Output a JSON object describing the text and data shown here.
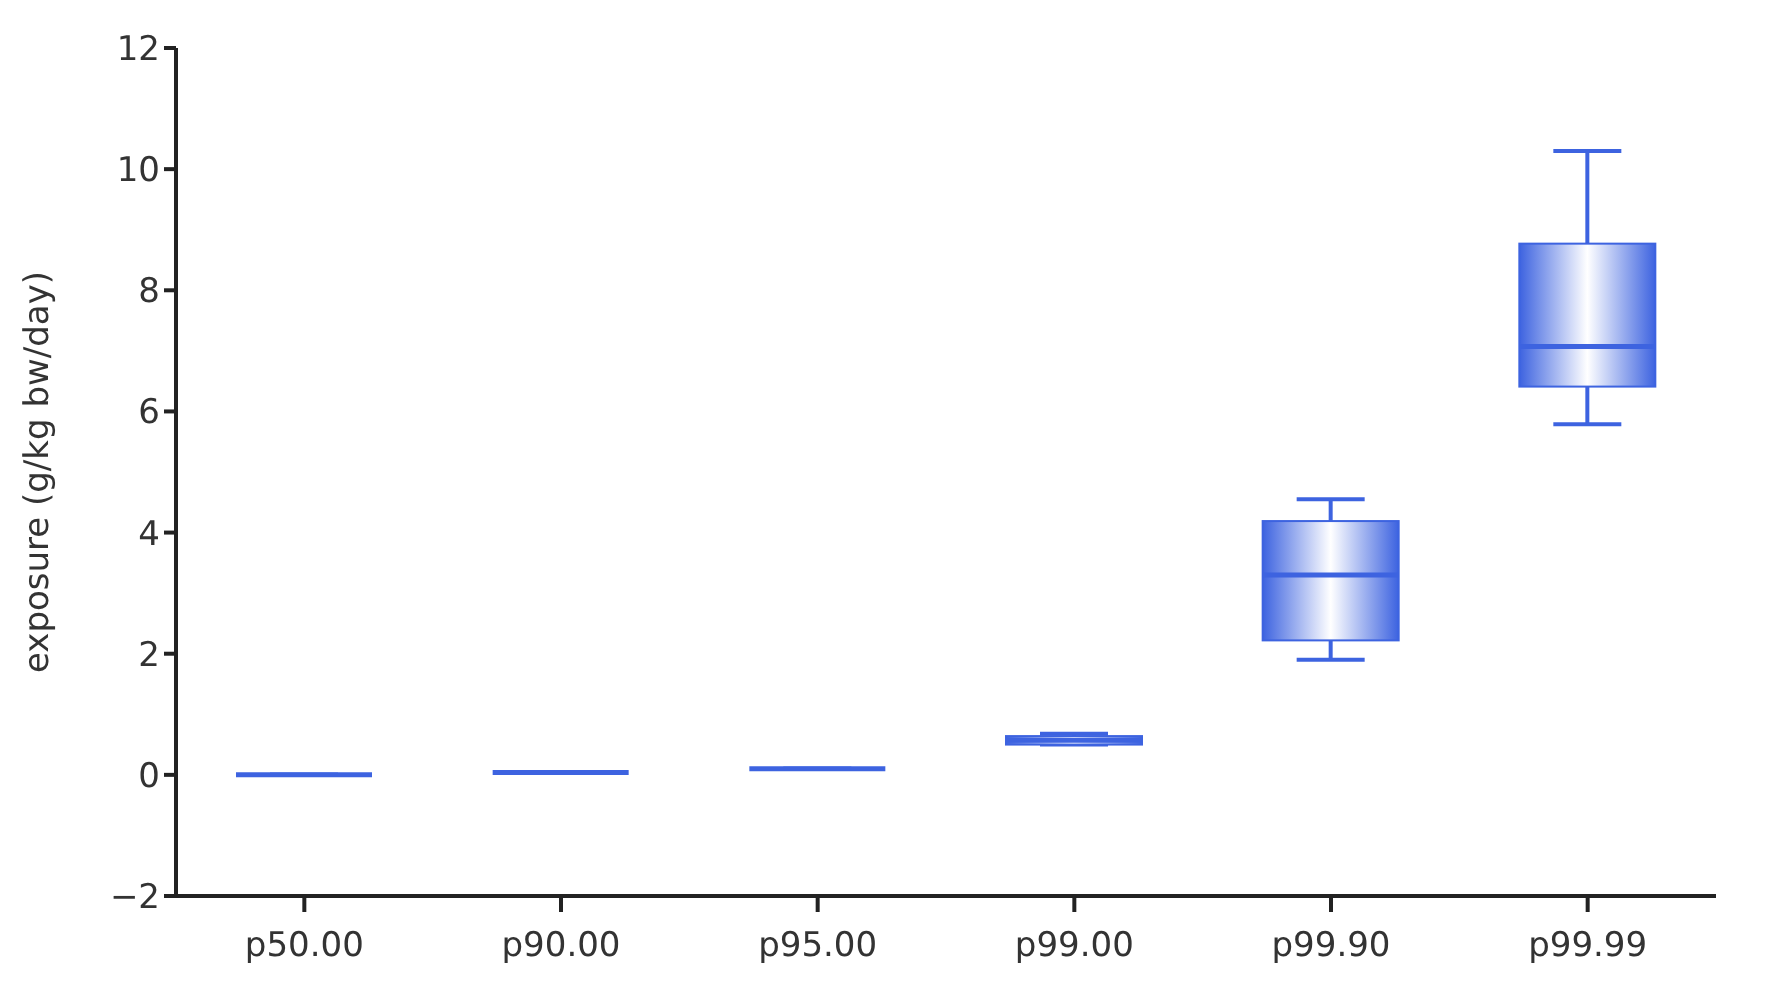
{
  "chart_data": {
    "type": "box",
    "ylabel": "exposure (g/kg bw/day)",
    "categories": [
      "p50.00",
      "p90.00",
      "p95.00",
      "p99.00",
      "p99.90",
      "p99.99"
    ],
    "series": [
      {
        "color": "#3d63e0",
        "boxes": [
          {
            "low": 0,
            "q1": 0,
            "median": 0,
            "q3": 0,
            "high": 0
          },
          {
            "low": 0.04,
            "q1": 0.04,
            "median": 0.04,
            "q3": 0.04,
            "high": 0.04
          },
          {
            "low": 0.1,
            "q1": 0.1,
            "median": 0.1,
            "q3": 0.1,
            "high": 0.1
          },
          {
            "low": 0.5,
            "q1": 0.5,
            "median": 0.57,
            "q3": 0.64,
            "high": 0.68
          },
          {
            "low": 1.9,
            "q1": 2.22,
            "median": 3.3,
            "q3": 4.19,
            "high": 4.55
          },
          {
            "low": 5.79,
            "q1": 6.41,
            "median": 7.07,
            "q3": 8.77,
            "high": 10.3
          }
        ]
      }
    ],
    "ylim": [
      -2,
      12
    ],
    "yticks": [
      -2,
      0,
      2,
      4,
      6,
      8,
      10,
      12
    ],
    "grid": false
  }
}
